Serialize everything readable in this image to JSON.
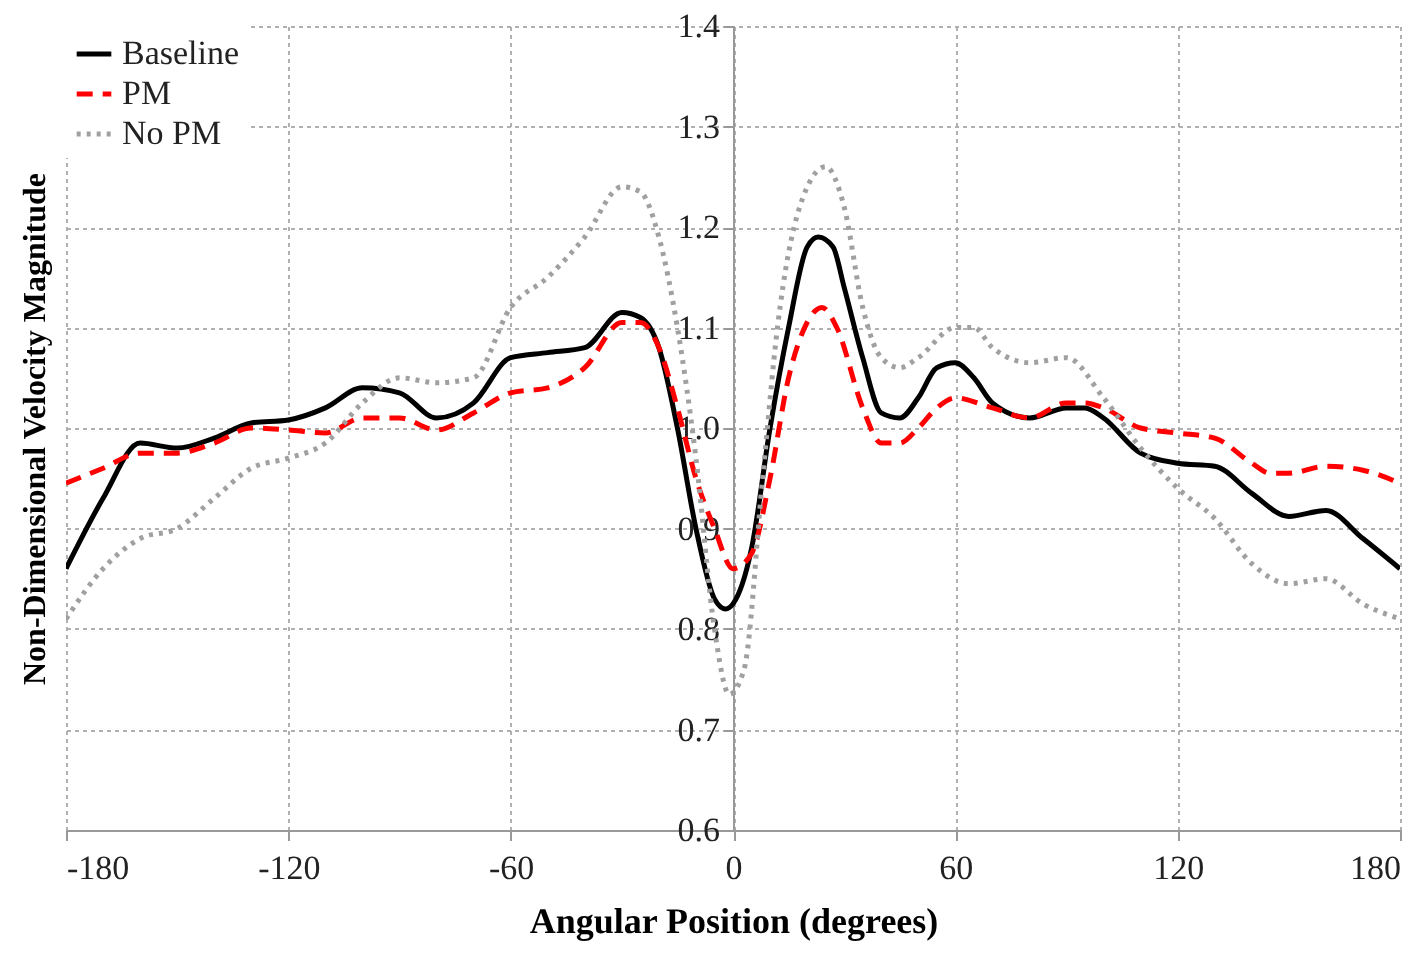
{
  "chart_data": {
    "type": "line",
    "xlabel": "Angular Position (degrees)",
    "ylabel": "Non-Dimensional Velocity Magnitude",
    "xlim": [
      -180,
      180
    ],
    "xticks": [
      -180,
      -120,
      -60,
      0,
      60,
      120,
      180
    ],
    "ylim": [
      0.6,
      1.4
    ],
    "yticks": [
      0.6,
      0.7,
      0.8,
      0.9,
      {
        "value": 1,
        "label": "1.0"
      },
      1.1,
      1.2,
      1.3,
      1.4
    ],
    "grid": true,
    "legend": "top left",
    "series": [
      {
        "name": "Baseline",
        "color": "#000000",
        "line_style": "solid",
        "x": [
          -180,
          -170,
          -160,
          -150,
          -140,
          -130,
          -120,
          -110,
          -100,
          -90,
          -80,
          -70,
          -60,
          -50,
          -40,
          -30,
          -25,
          -20,
          -15,
          -10,
          -5,
          -2,
          0,
          5,
          10,
          15,
          20,
          23,
          27,
          30,
          35,
          40,
          45,
          50,
          55,
          60,
          65,
          70,
          80,
          90,
          95,
          100,
          110,
          120,
          130,
          140,
          150,
          160,
          170,
          180
        ],
        "values": [
          0.86,
          0.93,
          0.985,
          0.98,
          0.99,
          1.005,
          1.008,
          1.02,
          1.04,
          1.035,
          1.01,
          1.025,
          1.07,
          1.075,
          1.08,
          1.115,
          1.11,
          1.08,
          1.0,
          0.9,
          0.83,
          0.82,
          0.825,
          0.88,
          1.0,
          1.1,
          1.18,
          1.19,
          1.18,
          1.14,
          1.07,
          1.015,
          1.01,
          1.03,
          1.06,
          1.065,
          1.05,
          1.025,
          1.01,
          1.02,
          1.02,
          1.01,
          0.975,
          0.965,
          0.962,
          0.935,
          0.912,
          0.918,
          0.89,
          0.86
        ]
      },
      {
        "name": "PM",
        "color": "#ff0000",
        "line_style": "dashed",
        "x": [
          -180,
          -170,
          -160,
          -150,
          -140,
          -130,
          -120,
          -110,
          -100,
          -90,
          -80,
          -70,
          -60,
          -50,
          -40,
          -30,
          -25,
          -20,
          -15,
          -10,
          -5,
          0,
          5,
          10,
          15,
          20,
          24,
          28,
          35,
          40,
          45,
          50,
          55,
          60,
          70,
          80,
          90,
          95,
          100,
          110,
          120,
          130,
          140,
          145,
          150,
          160,
          170,
          180
        ],
        "values": [
          0.945,
          0.96,
          0.975,
          0.975,
          0.985,
          1.0,
          0.998,
          0.995,
          1.01,
          1.01,
          0.998,
          1.015,
          1.035,
          1.04,
          1.06,
          1.105,
          1.105,
          1.08,
          1.02,
          0.95,
          0.9,
          0.86,
          0.875,
          0.95,
          1.05,
          1.105,
          1.12,
          1.1,
          1.02,
          0.985,
          0.985,
          1.0,
          1.02,
          1.03,
          1.02,
          1.01,
          1.025,
          1.025,
          1.02,
          1.0,
          0.995,
          0.99,
          0.965,
          0.955,
          0.955,
          0.962,
          0.958,
          0.945
        ]
      },
      {
        "name": "No PM",
        "color": "#a0a0a0",
        "line_style": "dotted",
        "x": [
          -180,
          -170,
          -160,
          -150,
          -140,
          -130,
          -120,
          -110,
          -100,
          -90,
          -80,
          -70,
          -60,
          -50,
          -40,
          -30,
          -25,
          -20,
          -15,
          -10,
          -5,
          -1,
          3,
          8,
          12,
          18,
          25,
          30,
          35,
          40,
          45,
          50,
          60,
          65,
          70,
          80,
          90,
          100,
          110,
          120,
          130,
          140,
          150,
          160,
          170,
          180
        ],
        "values": [
          0.81,
          0.86,
          0.89,
          0.9,
          0.93,
          0.96,
          0.97,
          0.985,
          1.025,
          1.05,
          1.045,
          1.05,
          1.12,
          1.15,
          1.19,
          1.24,
          1.235,
          1.19,
          1.1,
          0.97,
          0.8,
          0.735,
          0.76,
          0.95,
          1.1,
          1.22,
          1.26,
          1.22,
          1.12,
          1.07,
          1.06,
          1.07,
          1.1,
          1.1,
          1.08,
          1.065,
          1.07,
          1.03,
          0.98,
          0.94,
          0.91,
          0.865,
          0.845,
          0.85,
          0.825,
          0.81
        ]
      }
    ]
  }
}
